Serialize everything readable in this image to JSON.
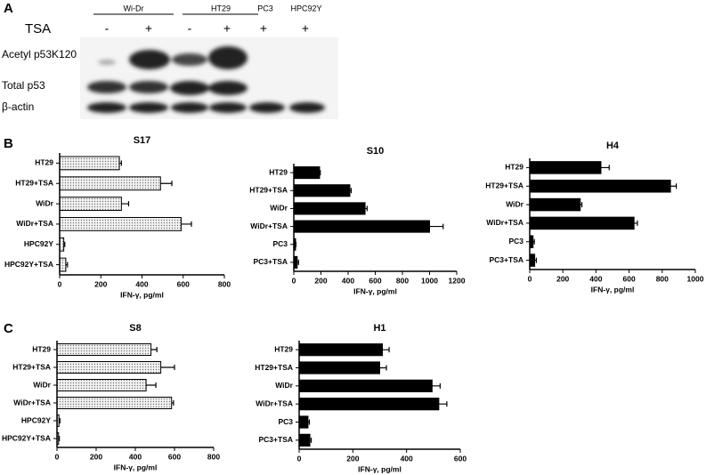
{
  "blot": {
    "panel": "A",
    "treatment_label": "TSA",
    "cell_lines": [
      "Wi-Dr",
      "HT29",
      "PC3",
      "HPC92Y"
    ],
    "treatments": [
      "-",
      "+",
      "-",
      "+",
      "+",
      "+"
    ],
    "rows": [
      "Acetyl p53K120",
      "Total p53",
      "β-actin"
    ]
  },
  "panels": [
    "B",
    "C"
  ],
  "chart_data": [
    {
      "type": "bar",
      "title": "S17",
      "x_label": "IFN-γ, pg/ml",
      "color": "#dcdcdc",
      "categories": [
        "HT29",
        "HT29+TSA",
        "WiDr",
        "WiDr+TSA",
        "HPC92Y",
        "HPC92Y+TSA"
      ],
      "values": [
        290,
        490,
        300,
        590,
        20,
        30
      ],
      "errors": [
        10,
        55,
        35,
        50,
        5,
        8
      ],
      "xlim": [
        0,
        800
      ],
      "xticks": [
        0,
        200,
        400,
        600,
        800
      ]
    },
    {
      "type": "bar",
      "title": "S10",
      "x_label": "IFN-γ, pg/ml",
      "color": "#000000",
      "categories": [
        "HT29",
        "HT29+TSA",
        "WiDr",
        "WiDr+TSA",
        "PC3",
        "PC3+TSA"
      ],
      "values": [
        190,
        413,
        525,
        1000,
        13,
        25
      ],
      "errors": [
        5,
        10,
        15,
        100,
        3,
        10
      ],
      "xlim": [
        0,
        1200
      ],
      "xticks": [
        0,
        200,
        400,
        600,
        800,
        1000,
        1200
      ]
    },
    {
      "type": "bar",
      "title": "H4",
      "x_label": "IFN-γ, pg/ml",
      "color": "#000000",
      "categories": [
        "HT29",
        "HT29+TSA",
        "WiDr",
        "WiDr+TSA",
        "PC3",
        "PC3+TSA"
      ],
      "values": [
        430,
        850,
        305,
        630,
        20,
        30
      ],
      "errors": [
        50,
        35,
        10,
        20,
        8,
        10
      ],
      "xlim": [
        0,
        1000
      ],
      "xticks": [
        0,
        200,
        400,
        600,
        800,
        1000
      ]
    },
    {
      "type": "bar",
      "title": "S8",
      "x_label": "IFN-γ, pg/ml",
      "color": "#dcdcdc",
      "categories": [
        "HT29",
        "HT29+TSA",
        "WiDr",
        "WiDr+TSA",
        "HPC92Y",
        "HPC92Y+TSA"
      ],
      "values": [
        480,
        530,
        455,
        585,
        10,
        8
      ],
      "errors": [
        30,
        70,
        50,
        10,
        5,
        4
      ],
      "xlim": [
        0,
        800
      ],
      "xticks": [
        0,
        200,
        400,
        600,
        800
      ]
    },
    {
      "type": "bar",
      "title": "H1",
      "x_label": "IFN-γ, pg/ml",
      "color": "#000000",
      "categories": [
        "HT29",
        "HT29+TSA",
        "WiDr",
        "WiDr+TSA",
        "PC3",
        "PC3+TSA"
      ],
      "values": [
        310,
        300,
        495,
        520,
        33,
        40
      ],
      "errors": [
        25,
        25,
        30,
        30,
        5,
        5
      ],
      "xlim": [
        0,
        600
      ],
      "xticks": [
        0,
        200,
        400,
        600
      ]
    }
  ]
}
